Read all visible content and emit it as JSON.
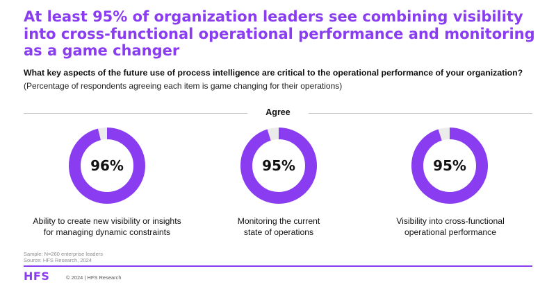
{
  "headline": "At least 95% of organization leaders see combining visibility into cross-functional operational performance and monitoring as a game changer",
  "question": "What key aspects of the future use of process intelligence are critical to the operational performance of your organization?",
  "subquestion": "(Percentage of respondents agreeing each item is game changing for their operations)",
  "colors": {
    "accent": "#8a3cf0",
    "remainder": "#ebebeb"
  },
  "chart_data": {
    "type": "pie",
    "title": "Agree",
    "series": [
      {
        "label_lines": [
          "Ability to create new visibility or insights",
          "for managing dynamic constraints"
        ],
        "value": 96,
        "display": "96%"
      },
      {
        "label_lines": [
          "Monitoring the current",
          "state of operations"
        ],
        "value": 95,
        "display": "95%"
      },
      {
        "label_lines": [
          "Visibility into cross-functional",
          "operational performance"
        ],
        "value": 95,
        "display": "95%"
      }
    ]
  },
  "footnotes": {
    "sample": "Sample: N=260 enterprise leaders",
    "source": "Source: HFS Research, 2024"
  },
  "footer": {
    "logo": "HFS",
    "copyright": "© 2024 | HFS Research"
  }
}
